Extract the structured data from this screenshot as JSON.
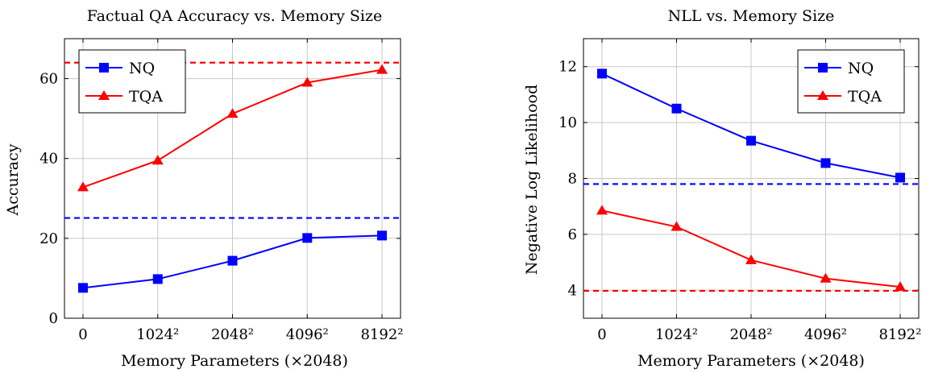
{
  "colors": {
    "NQ": "#0000ff",
    "TQA": "#ff0000"
  },
  "chart_data": [
    {
      "type": "line",
      "title": "Factual QA Accuracy vs. Memory Size",
      "xlabel": "Memory Parameters (×2048)",
      "ylabel": "Accuracy",
      "categories": [
        "0",
        "1024²",
        "2048²",
        "4096²",
        "8192²"
      ],
      "yticks": [
        "0",
        "20",
        "40",
        "60"
      ],
      "ylim": [
        0,
        70
      ],
      "grid": true,
      "legend_position": "top-left",
      "series": [
        {
          "name": "NQ",
          "values": [
            7.6,
            9.8,
            14.4,
            20.1,
            20.7
          ],
          "marker": "square",
          "color": "#0000ff"
        },
        {
          "name": "TQA",
          "values": [
            32.8,
            39.5,
            51.2,
            59.0,
            62.2
          ],
          "marker": "triangle",
          "color": "#ff0000"
        }
      ],
      "reference_lines": [
        {
          "series": "NQ",
          "y": 25.1,
          "color": "#0000ff",
          "style": "dashed"
        },
        {
          "series": "TQA",
          "y": 64.0,
          "color": "#ff0000",
          "style": "dashed"
        }
      ]
    },
    {
      "type": "line",
      "title": "NLL vs. Memory Size",
      "xlabel": "Memory Parameters (×2048)",
      "ylabel": "Negative Log Likelihood",
      "categories": [
        "0",
        "1024²",
        "2048²",
        "4096²",
        "8192²"
      ],
      "yticks": [
        "4",
        "6",
        "8",
        "10",
        "12"
      ],
      "ylim": [
        3,
        13
      ],
      "grid": true,
      "legend_position": "top-right",
      "series": [
        {
          "name": "NQ",
          "values": [
            11.75,
            10.5,
            9.35,
            8.55,
            8.03
          ],
          "marker": "square",
          "color": "#0000ff"
        },
        {
          "name": "TQA",
          "values": [
            6.85,
            6.27,
            5.08,
            4.42,
            4.12
          ],
          "marker": "triangle",
          "color": "#ff0000"
        }
      ],
      "reference_lines": [
        {
          "series": "NQ",
          "y": 7.8,
          "color": "#0000ff",
          "style": "dashed"
        },
        {
          "series": "TQA",
          "y": 3.98,
          "color": "#ff0000",
          "style": "dashed"
        }
      ]
    }
  ]
}
